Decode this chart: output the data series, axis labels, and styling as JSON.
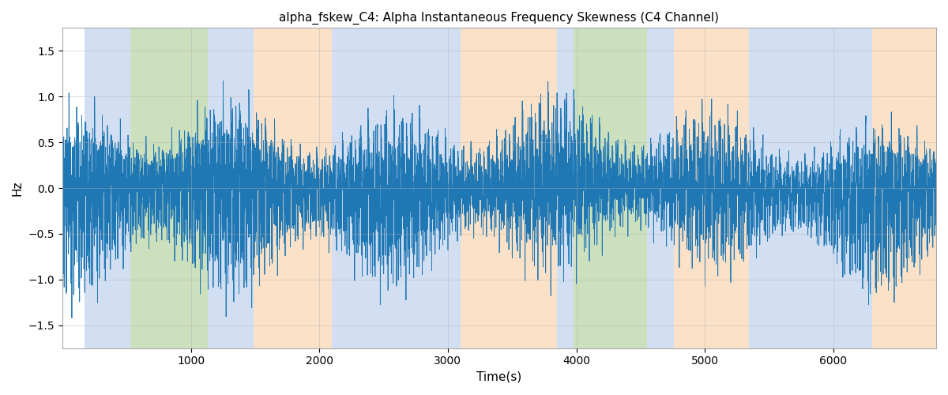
{
  "title": "alpha_fskew_C4: Alpha Instantaneous Frequency Skewness (C4 Channel)",
  "xlabel": "Time(s)",
  "ylabel": "Hz",
  "xlim": [
    0,
    6800
  ],
  "ylim": [
    -1.75,
    1.75
  ],
  "line_color": "#1f77b4",
  "line_width": 0.6,
  "background_color": "#ffffff",
  "grid_color": "#b0b0b0",
  "bg_bands": [
    {
      "xmin": 170,
      "xmax": 530,
      "color": "#aec6e8",
      "alpha": 0.55
    },
    {
      "xmin": 530,
      "xmax": 1130,
      "color": "#8fbc6f",
      "alpha": 0.45
    },
    {
      "xmin": 1130,
      "xmax": 1490,
      "color": "#aec6e8",
      "alpha": 0.55
    },
    {
      "xmin": 1490,
      "xmax": 2100,
      "color": "#f7c99a",
      "alpha": 0.55
    },
    {
      "xmin": 2100,
      "xmax": 3100,
      "color": "#aec6e8",
      "alpha": 0.55
    },
    {
      "xmin": 3100,
      "xmax": 3850,
      "color": "#f7c99a",
      "alpha": 0.55
    },
    {
      "xmin": 3850,
      "xmax": 3980,
      "color": "#aec6e8",
      "alpha": 0.55
    },
    {
      "xmin": 3980,
      "xmax": 4550,
      "color": "#8fbc6f",
      "alpha": 0.45
    },
    {
      "xmin": 4550,
      "xmax": 4760,
      "color": "#aec6e8",
      "alpha": 0.55
    },
    {
      "xmin": 4760,
      "xmax": 5340,
      "color": "#f7c99a",
      "alpha": 0.55
    },
    {
      "xmin": 5340,
      "xmax": 6150,
      "color": "#aec6e8",
      "alpha": 0.55
    },
    {
      "xmin": 6150,
      "xmax": 6300,
      "color": "#aec6e8",
      "alpha": 0.55
    },
    {
      "xmin": 6300,
      "xmax": 6800,
      "color": "#f7c99a",
      "alpha": 0.55
    }
  ],
  "n_points": 6800,
  "yticks": [
    -1.5,
    -1.0,
    -0.5,
    0.0,
    0.5,
    1.0,
    1.5
  ],
  "xticks": [
    1000,
    2000,
    3000,
    4000,
    5000,
    6000
  ]
}
